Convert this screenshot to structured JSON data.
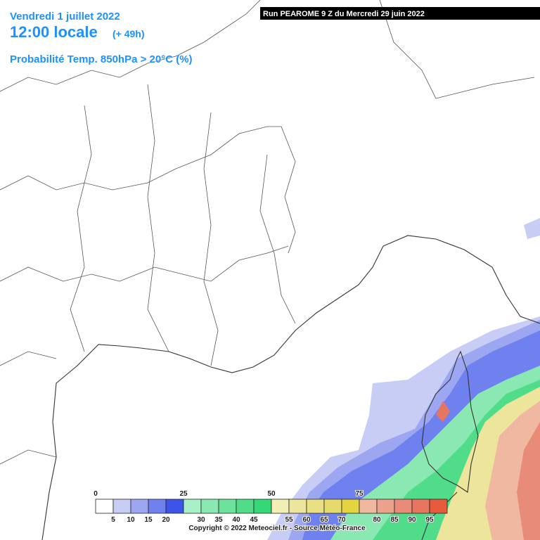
{
  "header": {
    "date": "Vendredi 1 juillet 2022",
    "time": "12:00 locale",
    "lead": "(+ 49h)",
    "parameter": "Probabilité Temp. 850hPa > 20°C (%)",
    "run": "Run PEAROME 9 Z du Mercredi 29 juin 2022"
  },
  "legend": {
    "top_labels": [
      0,
      25,
      50,
      75
    ],
    "bottom_labels": [
      5,
      10,
      15,
      20,
      30,
      35,
      40,
      45,
      55,
      60,
      65,
      70,
      80,
      85,
      90,
      95
    ],
    "colors": [
      "#ffffff",
      "#c8cdf6",
      "#9ca6f1",
      "#6f81ee",
      "#3c55e8",
      "#a8f0c8",
      "#8ae9b2",
      "#6de29c",
      "#50dc88",
      "#35d874",
      "#f2efb4",
      "#ede59c",
      "#e9e084",
      "#e6da6c",
      "#e4d440",
      "#f0b8a0",
      "#eca18c",
      "#e88b78",
      "#e87560",
      "#e85a3c"
    ]
  },
  "footer": {
    "copyright": "Copyright © 2022 Meteociel.fr - Source Météo-France"
  }
}
